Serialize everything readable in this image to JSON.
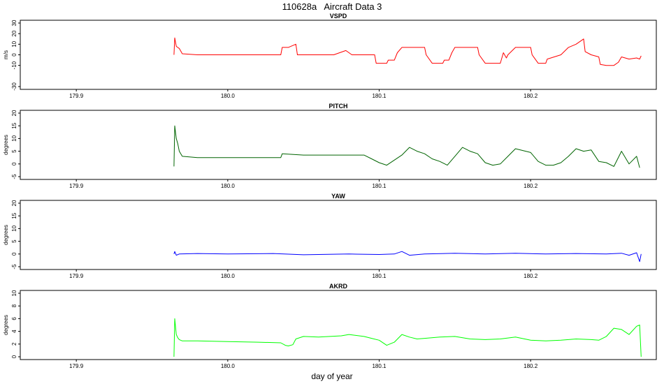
{
  "title": "110628a   Aircraft Data 3",
  "xlabel": "day of year",
  "chart_data": [
    {
      "type": "line",
      "title": "VSPD",
      "ylabel": "m/s",
      "color": "#ff0000",
      "xlim": [
        179.863,
        180.283
      ],
      "ylim": [
        -30,
        30
      ],
      "xticks": [
        179.9,
        180.0,
        180.1,
        180.2
      ],
      "xtick_labels": [
        "179.9",
        "180.0",
        "180.1",
        "180.2"
      ],
      "yticks": [
        -30,
        -10,
        0,
        10,
        20,
        30
      ],
      "ytick_labels": [
        "-30",
        "-10",
        "0",
        "10",
        "20",
        "30"
      ],
      "series": [
        {
          "x": [
            179.9645,
            179.965,
            179.966,
            179.967,
            179.968,
            179.97,
            179.98,
            180.0,
            180.03,
            180.035,
            180.036,
            180.04,
            180.045,
            180.046,
            180.05,
            180.07,
            180.078,
            180.082,
            180.09,
            180.097,
            180.098,
            180.105,
            180.106,
            180.11,
            180.112,
            180.115,
            180.13,
            180.131,
            180.135,
            180.142,
            180.143,
            180.146,
            180.148,
            180.15,
            180.165,
            180.166,
            180.17,
            180.18,
            180.182,
            180.184,
            180.185,
            180.19,
            180.2,
            180.201,
            180.205,
            180.21,
            180.211,
            180.22,
            180.225,
            180.23,
            180.235,
            180.236,
            180.24,
            180.245,
            180.246,
            180.25,
            180.255,
            180.258,
            180.26,
            180.265,
            180.27,
            180.272,
            180.273
          ],
          "y": [
            0,
            16,
            8,
            7,
            6,
            1,
            0,
            0,
            0,
            0,
            7,
            7,
            10,
            0,
            0,
            0,
            4,
            0,
            0,
            0,
            -8,
            -8,
            -5,
            -5,
            2,
            7,
            7,
            0,
            -8,
            -8,
            -5,
            -5,
            2,
            7,
            7,
            0,
            -8,
            -8,
            2,
            -3,
            0,
            7,
            7,
            0,
            -8,
            -8,
            -4,
            0,
            7,
            10,
            15,
            3,
            0,
            -2,
            -9,
            -10,
            -10,
            -7,
            -2,
            -4,
            -3,
            -4,
            -1
          ]
        }
      ]
    },
    {
      "type": "line",
      "title": "PITCH",
      "ylabel": "degrees",
      "color": "#006400",
      "xlim": [
        179.863,
        180.283
      ],
      "ylim": [
        -5,
        20
      ],
      "xticks": [
        179.9,
        180.0,
        180.1,
        180.2
      ],
      "xtick_labels": [
        "179.9",
        "180.0",
        "180.1",
        "180.2"
      ],
      "yticks": [
        -5,
        0,
        5,
        10,
        15,
        20
      ],
      "ytick_labels": [
        "-5",
        "0",
        "5",
        "10",
        "15",
        "20"
      ],
      "series": [
        {
          "x": [
            179.9645,
            179.965,
            179.966,
            179.967,
            179.968,
            179.97,
            179.98,
            180.0,
            180.03,
            180.035,
            180.036,
            180.05,
            180.078,
            180.09,
            180.095,
            180.1,
            180.105,
            180.11,
            180.115,
            180.12,
            180.125,
            180.13,
            180.135,
            180.14,
            180.145,
            180.15,
            180.155,
            180.16,
            180.165,
            180.17,
            180.175,
            180.18,
            180.185,
            180.19,
            180.2,
            180.205,
            180.21,
            180.215,
            180.22,
            180.225,
            180.23,
            180.235,
            180.24,
            180.245,
            180.25,
            180.255,
            180.26,
            180.265,
            180.27,
            180.272
          ],
          "y": [
            -1,
            15,
            10,
            8,
            5,
            3,
            2.5,
            2.5,
            2.5,
            2.5,
            4,
            3.5,
            3.5,
            3.5,
            2,
            0.5,
            -0.5,
            1.5,
            3.5,
            6.5,
            5,
            4,
            2,
            1,
            -0.5,
            3,
            6.5,
            5,
            4,
            0.5,
            -0.5,
            0,
            3,
            6,
            4.5,
            1,
            -0.5,
            -0.5,
            0.5,
            3,
            6,
            5,
            5.5,
            1,
            0.5,
            -1,
            5,
            0,
            3,
            -1.5
          ]
        }
      ]
    },
    {
      "type": "line",
      "title": "YAW",
      "ylabel": "degrees",
      "color": "#0000ff",
      "xlim": [
        179.863,
        180.283
      ],
      "ylim": [
        -5,
        20
      ],
      "xticks": [
        179.9,
        180.0,
        180.1,
        180.2
      ],
      "xtick_labels": [
        "179.9",
        "180.0",
        "180.1",
        "180.2"
      ],
      "yticks": [
        -5,
        0,
        5,
        10,
        15,
        20
      ],
      "ytick_labels": [
        "-5",
        "0",
        "5",
        "10",
        "15",
        "20"
      ],
      "series": [
        {
          "x": [
            179.9645,
            179.965,
            179.966,
            179.968,
            179.98,
            180.0,
            180.03,
            180.05,
            180.08,
            180.1,
            180.11,
            180.115,
            180.12,
            180.13,
            180.15,
            180.17,
            180.19,
            180.21,
            180.23,
            180.25,
            180.26,
            180.265,
            180.27,
            180.272,
            180.273
          ],
          "y": [
            0,
            1,
            -0.5,
            0,
            0.2,
            0,
            0.2,
            -0.3,
            0,
            -0.2,
            0,
            1,
            -0.5,
            0,
            0.3,
            0,
            0.3,
            0,
            0.2,
            0,
            0.3,
            -0.5,
            0.5,
            -3,
            0
          ]
        }
      ]
    },
    {
      "type": "line",
      "title": "AKRD",
      "ylabel": "degrees",
      "color": "#00ff00",
      "xlim": [
        179.863,
        180.283
      ],
      "ylim": [
        0,
        10
      ],
      "xticks": [
        179.9,
        180.0,
        180.1,
        180.2
      ],
      "xtick_labels": [
        "179.9",
        "180.0",
        "180.1",
        "180.2"
      ],
      "yticks": [
        0,
        2,
        4,
        6,
        8,
        10
      ],
      "ytick_labels": [
        "0",
        "2",
        "4",
        "6",
        "8",
        "10"
      ],
      "series": [
        {
          "x": [
            179.9645,
            179.965,
            179.966,
            179.967,
            179.968,
            179.97,
            179.98,
            180.0,
            180.02,
            180.035,
            180.038,
            180.04,
            180.043,
            180.045,
            180.05,
            180.06,
            180.075,
            180.08,
            180.09,
            180.095,
            180.1,
            180.105,
            180.11,
            180.115,
            180.12,
            180.125,
            180.13,
            180.14,
            180.15,
            180.16,
            180.17,
            180.18,
            180.19,
            180.2,
            180.21,
            180.22,
            180.23,
            180.24,
            180.245,
            180.25,
            180.255,
            180.26,
            180.265,
            180.27,
            180.272,
            180.273
          ],
          "y": [
            0,
            6,
            3.5,
            3,
            2.7,
            2.5,
            2.5,
            2.4,
            2.3,
            2.2,
            1.8,
            1.7,
            1.9,
            2.8,
            3.2,
            3.1,
            3.3,
            3.5,
            3.2,
            2.9,
            2.6,
            1.8,
            2.3,
            3.5,
            3.1,
            2.8,
            2.9,
            3.1,
            3.2,
            2.8,
            2.7,
            2.8,
            3.1,
            2.6,
            2.5,
            2.6,
            2.8,
            2.7,
            2.6,
            3.2,
            4.5,
            4.3,
            3.5,
            4.8,
            5,
            0
          ]
        }
      ]
    }
  ]
}
